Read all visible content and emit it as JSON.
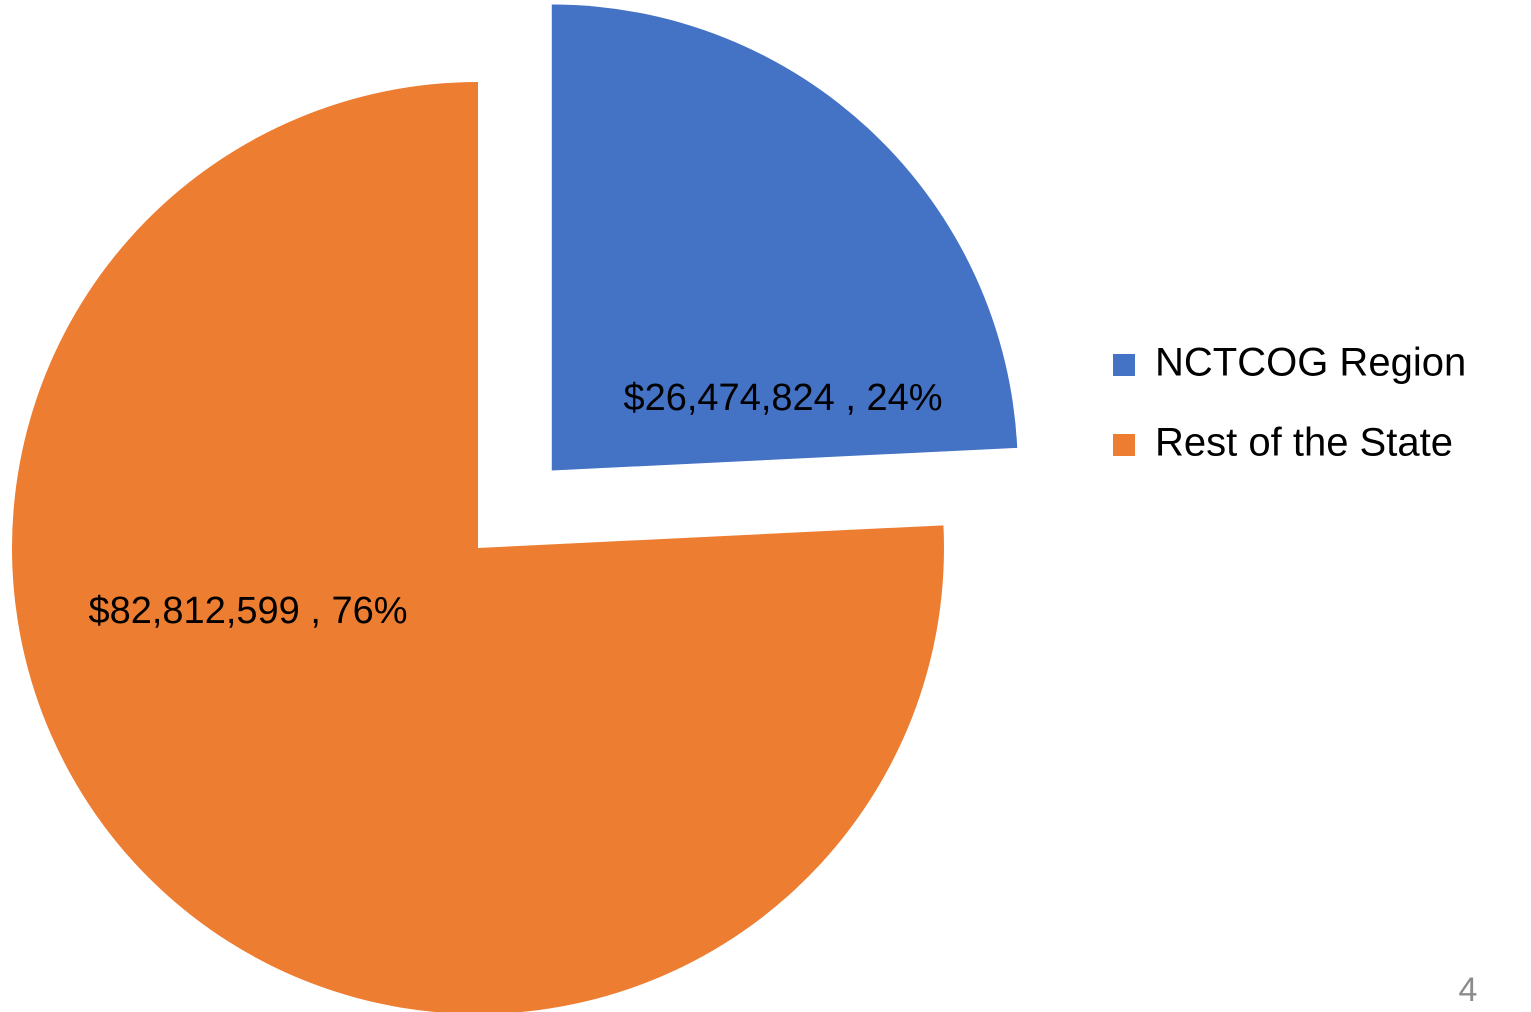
{
  "chart_data": {
    "type": "pie",
    "categories": [
      "NCTCOG Region",
      "Rest of the State"
    ],
    "values": [
      26474824,
      82812599
    ],
    "value_labels": [
      "$26,474,824 , 24%",
      "$82,812,599 , 76%"
    ],
    "colors": [
      "#4472c4",
      "#ed7d31"
    ],
    "exploded": [
      true,
      false
    ],
    "legend": "right"
  },
  "page_number": "4"
}
